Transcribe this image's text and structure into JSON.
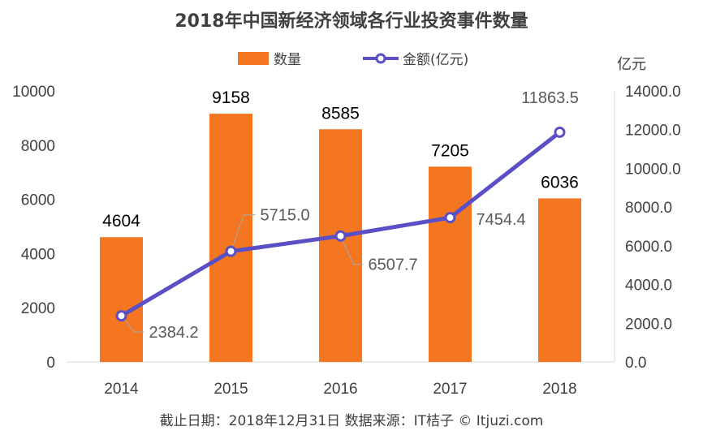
{
  "chart_data": {
    "type": "bar",
    "title": "2018年中国新经济领域各行业投资事件数量",
    "categories": [
      "2014",
      "2015",
      "2016",
      "2017",
      "2018"
    ],
    "series": [
      {
        "name": "数量",
        "type": "bar",
        "axis": "left",
        "color": "#f47620",
        "values": [
          4604,
          9158,
          8585,
          7205,
          6036
        ],
        "labels": [
          "4604",
          "9158",
          "8585",
          "7205",
          "6036"
        ]
      },
      {
        "name": "金额(亿元)",
        "type": "line",
        "axis": "right",
        "color": "#5b4fc6",
        "values": [
          2384.2,
          5715.0,
          6507.7,
          7454.4,
          11863.5
        ],
        "labels": [
          "2384.2",
          "5715.0",
          "6507.7",
          "7454.4",
          "11863.5"
        ]
      }
    ],
    "y_left": {
      "min": 0,
      "max": 10000,
      "ticks": [
        "0",
        "2000",
        "4000",
        "6000",
        "8000",
        "10000"
      ]
    },
    "y_right": {
      "min": 0,
      "max": 14000,
      "unit": "亿元",
      "ticks": [
        "0.0",
        "2000.0",
        "4000.0",
        "6000.0",
        "8000.0",
        "10000.0",
        "12000.0",
        "14000.0"
      ]
    },
    "grid": false,
    "legend": "top-center",
    "footer": "截止日期：2018年12月31日    数据来源：IT桔子 © Itjuzi.com"
  }
}
